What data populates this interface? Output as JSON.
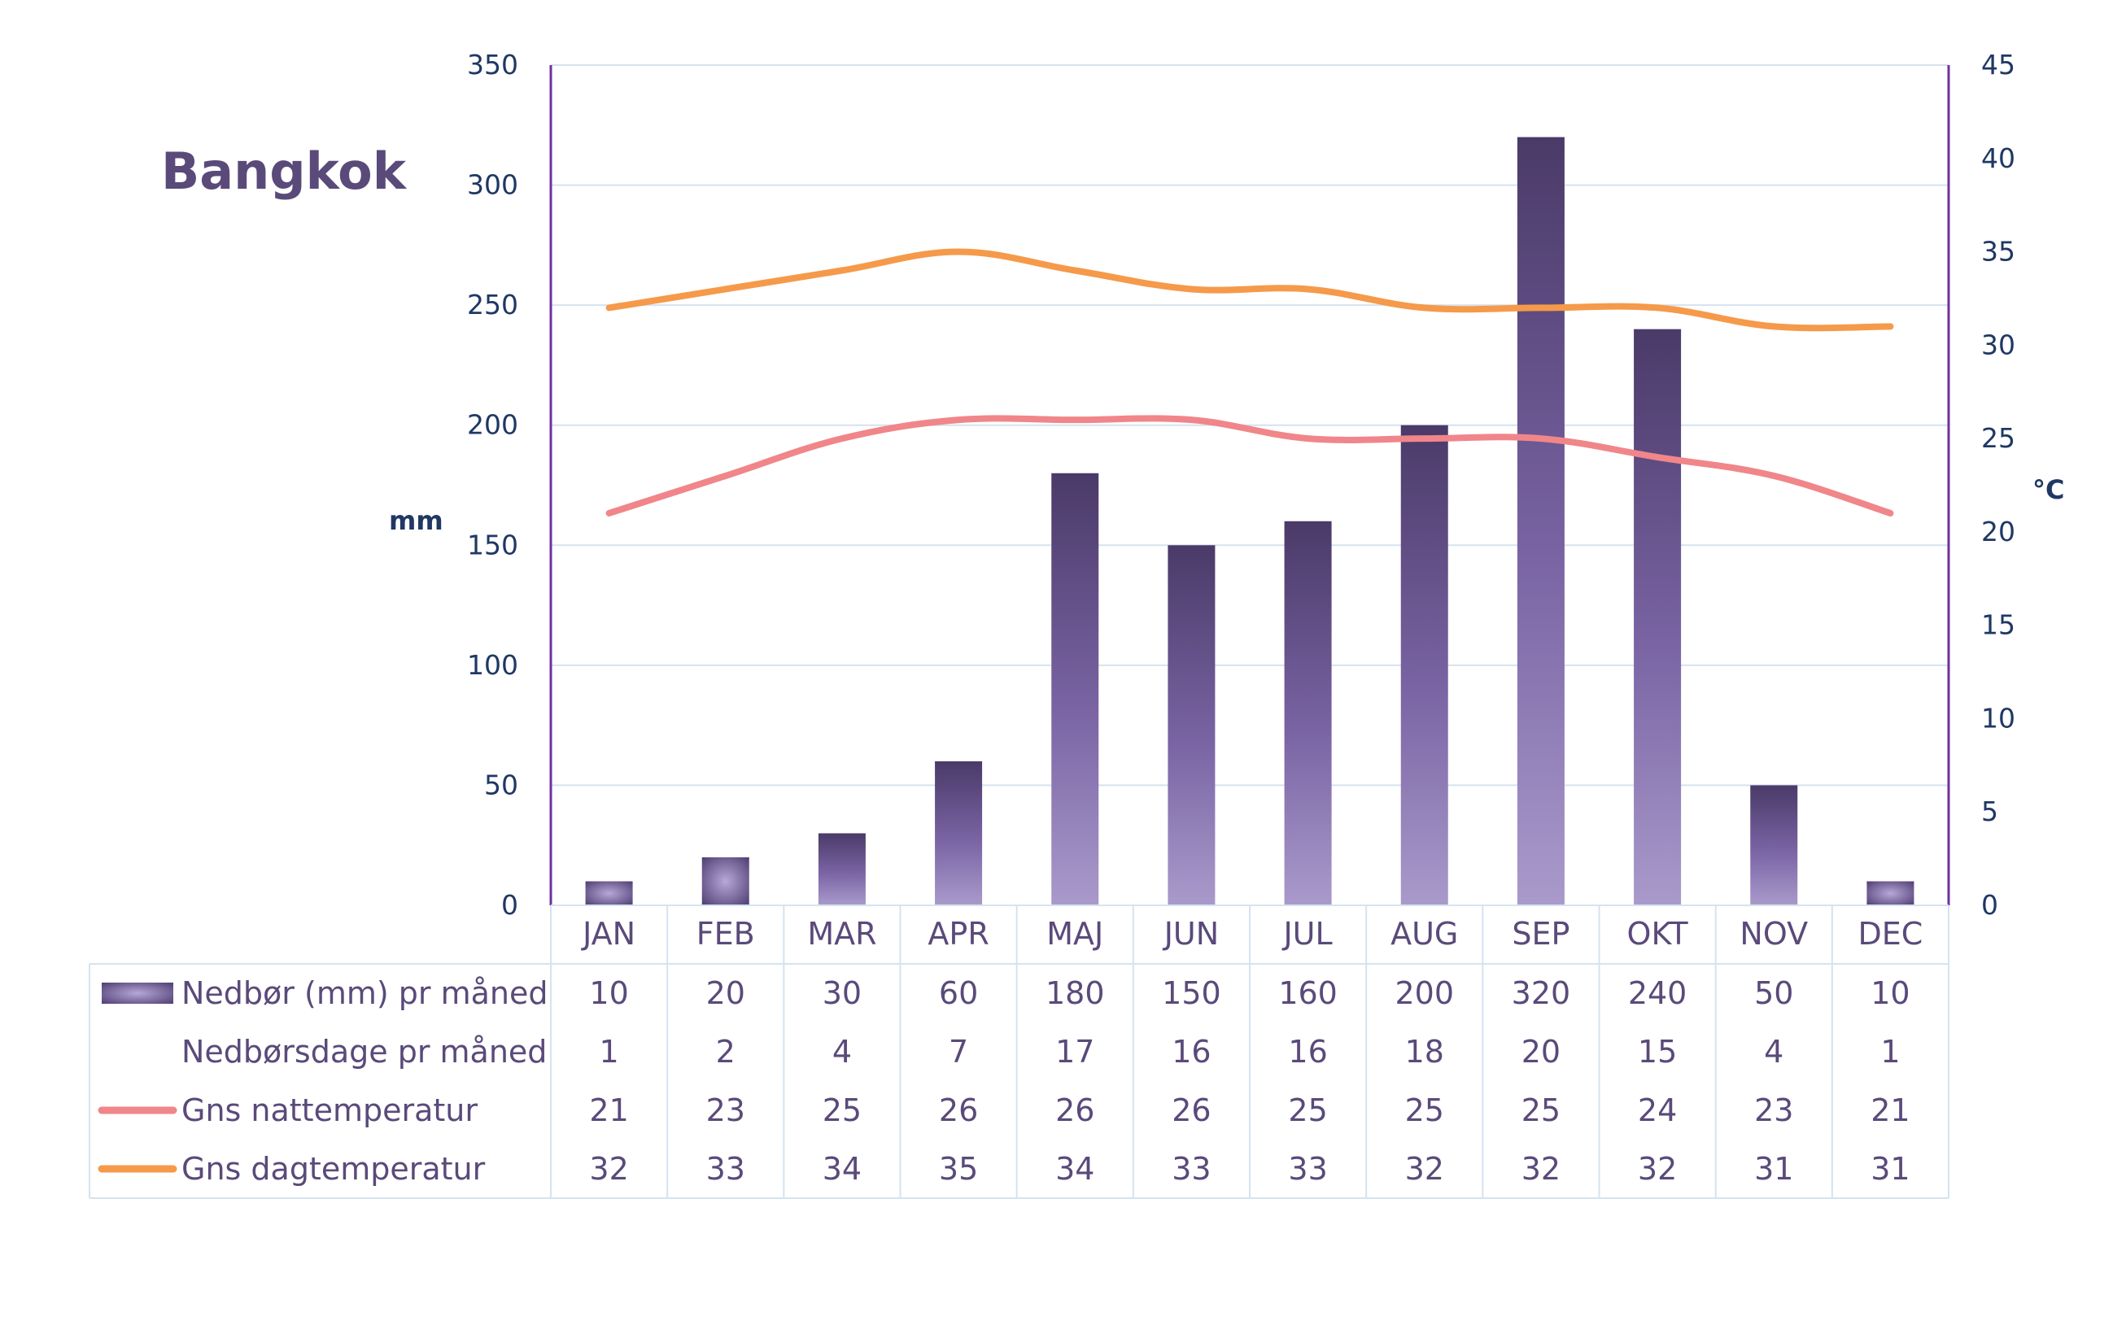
{
  "chart_data": {
    "type": "bar",
    "title": "Bangkok",
    "categories": [
      "JAN",
      "FEB",
      "MAR",
      "APR",
      "MAJ",
      "JUN",
      "JUL",
      "AUG",
      "SEP",
      "OKT",
      "NOV",
      "DEC"
    ],
    "y_left": {
      "label": "mm",
      "min": 0,
      "max": 350,
      "step": 50
    },
    "y_right": {
      "label": "°C",
      "min": 0,
      "max": 45,
      "step": 5
    },
    "grid": true,
    "series": [
      {
        "name": "Nedbør (mm) pr måned",
        "type": "bar",
        "axis": "left",
        "values": [
          10,
          20,
          30,
          60,
          180,
          150,
          160,
          200,
          320,
          240,
          50,
          10
        ]
      },
      {
        "name": "Nedbørsdage pr måned",
        "type": "table-only",
        "values": [
          1,
          2,
          4,
          7,
          17,
          16,
          16,
          18,
          20,
          15,
          4,
          1
        ]
      },
      {
        "name": "Gns nattemperatur",
        "type": "line",
        "axis": "right",
        "values": [
          21,
          23,
          25,
          26,
          26,
          26,
          25,
          25,
          25,
          24,
          23,
          21
        ]
      },
      {
        "name": "Gns dagtemperatur",
        "type": "line",
        "axis": "right",
        "values": [
          32,
          33,
          34,
          35,
          34,
          33,
          33,
          32,
          32,
          32,
          31,
          31
        ]
      }
    ],
    "colors": {
      "bar_top": "#4a3a68",
      "bar_bottom": "#a596c6",
      "night_line": "#f0868a",
      "day_line": "#f59a4a",
      "axis": "#7030a0",
      "grid": "#d5e3f0",
      "text": "#1f3864",
      "label": "#5a4a7a"
    }
  }
}
